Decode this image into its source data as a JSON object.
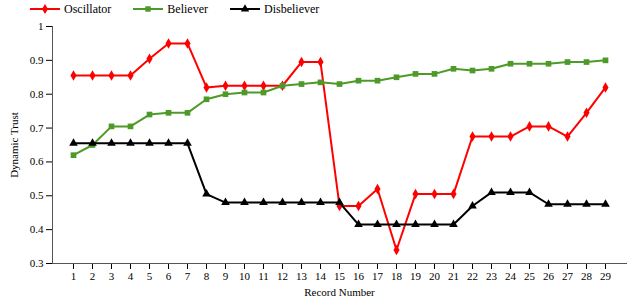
{
  "chart_data": {
    "type": "line",
    "x_label": "Record Number",
    "y_label": "Dynamic Trust",
    "categories": [
      1,
      2,
      3,
      4,
      5,
      6,
      7,
      8,
      9,
      10,
      11,
      12,
      13,
      14,
      15,
      16,
      17,
      18,
      19,
      20,
      21,
      22,
      23,
      24,
      25,
      26,
      27,
      28,
      29
    ],
    "series": [
      {
        "name": "Oscillator",
        "color": "#ff0000",
        "marker": "diamond",
        "values": [
          0.855,
          0.855,
          0.855,
          0.855,
          0.905,
          0.95,
          0.95,
          0.82,
          0.825,
          0.825,
          0.825,
          0.825,
          0.895,
          0.895,
          0.47,
          0.47,
          0.52,
          0.34,
          0.505,
          0.505,
          0.505,
          0.675,
          0.675,
          0.675,
          0.705,
          0.705,
          0.675,
          0.745,
          0.82
        ]
      },
      {
        "name": "Believer",
        "color": "#4e9a28",
        "marker": "square",
        "values": [
          0.62,
          0.65,
          0.705,
          0.705,
          0.74,
          0.745,
          0.745,
          0.785,
          0.8,
          0.805,
          0.805,
          0.825,
          0.83,
          0.835,
          0.83,
          0.84,
          0.84,
          0.85,
          0.86,
          0.86,
          0.875,
          0.87,
          0.875,
          0.89,
          0.89,
          0.89,
          0.895,
          0.895,
          0.9
        ]
      },
      {
        "name": "Disbeliever",
        "color": "#000000",
        "marker": "triangle",
        "values": [
          0.655,
          0.655,
          0.655,
          0.655,
          0.655,
          0.655,
          0.655,
          0.505,
          0.48,
          0.48,
          0.48,
          0.48,
          0.48,
          0.48,
          0.48,
          0.415,
          0.415,
          0.415,
          0.415,
          0.415,
          0.415,
          0.47,
          0.51,
          0.51,
          0.51,
          0.475,
          0.475,
          0.475,
          0.475
        ]
      }
    ],
    "ylim": [
      0.3,
      1
    ],
    "yticks": [
      0.3,
      0.4,
      0.5,
      0.6,
      0.7,
      0.8,
      0.9,
      1
    ],
    "grid": false,
    "legend": "top-left"
  }
}
